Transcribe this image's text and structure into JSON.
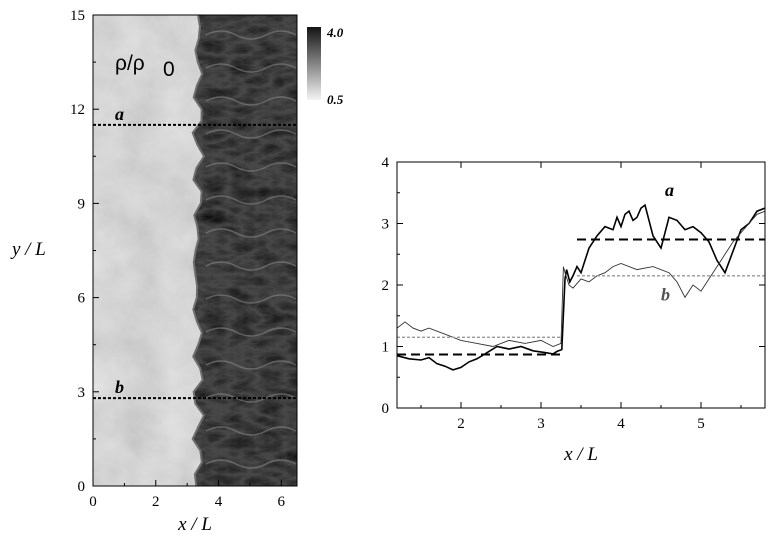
{
  "chart_data": [
    {
      "type": "heatmap",
      "field_label": "ρ/ρ",
      "field_label_sub": "0",
      "xlabel": "x / L",
      "ylabel": "y / L",
      "xlim": [
        0,
        6.5
      ],
      "ylim": [
        0,
        15
      ],
      "xticks": [
        "0",
        "2",
        "4",
        "6"
      ],
      "yticks": [
        "0",
        "3",
        "6",
        "9",
        "12",
        "15"
      ],
      "colorbar": {
        "min_label": "0.5",
        "max_label": "4.0",
        "min": 0.5,
        "max": 4.0
      },
      "cut_lines": [
        {
          "name": "a",
          "y": 11.5
        },
        {
          "name": "b",
          "y": 2.8
        }
      ],
      "colors": {
        "unshocked": "#e2e2e2",
        "shocked": "#474747",
        "front": "#6e6e6e"
      }
    },
    {
      "type": "line",
      "xlabel": "x / L",
      "ylabel": "",
      "xlim": [
        1.2,
        5.8
      ],
      "ylim": [
        0,
        4
      ],
      "xticks": [
        "2",
        "3",
        "4",
        "5"
      ],
      "yticks": [
        "0",
        "1",
        "2",
        "3",
        "4"
      ],
      "series": [
        {
          "name": "a",
          "color": "#000000",
          "x": [
            1.2,
            1.35,
            1.5,
            1.6,
            1.7,
            1.8,
            1.9,
            2.0,
            2.1,
            2.2,
            2.3,
            2.45,
            2.6,
            2.75,
            2.9,
            3.05,
            3.15,
            3.2,
            3.26,
            3.3,
            3.32,
            3.36,
            3.4,
            3.45,
            3.5,
            3.55,
            3.6,
            3.7,
            3.8,
            3.9,
            3.95,
            4.0,
            4.05,
            4.1,
            4.15,
            4.2,
            4.25,
            4.3,
            4.4,
            4.5,
            4.6,
            4.7,
            4.8,
            4.9,
            5.0,
            5.1,
            5.2,
            5.3,
            5.4,
            5.5,
            5.6,
            5.7,
            5.8
          ],
          "y": [
            0.85,
            0.8,
            0.78,
            0.82,
            0.72,
            0.68,
            0.62,
            0.66,
            0.75,
            0.8,
            0.88,
            1.0,
            0.96,
            1.0,
            0.93,
            0.9,
            0.88,
            0.92,
            0.95,
            2.1,
            2.25,
            2.05,
            2.15,
            2.3,
            2.2,
            2.4,
            2.6,
            2.8,
            2.95,
            2.9,
            3.1,
            2.95,
            3.15,
            3.2,
            3.05,
            3.1,
            3.25,
            3.3,
            2.8,
            2.6,
            3.1,
            3.05,
            2.9,
            2.95,
            2.85,
            2.7,
            2.4,
            2.2,
            2.55,
            2.9,
            3.0,
            3.2,
            3.25
          ]
        },
        {
          "name": "a-mean-left",
          "color": "#000000",
          "x": [
            1.2,
            3.25
          ],
          "y": [
            0.87,
            0.87
          ]
        },
        {
          "name": "a-mean-right",
          "color": "#000000",
          "x": [
            3.45,
            5.8
          ],
          "y": [
            2.74,
            2.74
          ]
        },
        {
          "name": "b",
          "color": "#333333",
          "x": [
            1.2,
            1.3,
            1.4,
            1.5,
            1.6,
            1.8,
            2.0,
            2.2,
            2.4,
            2.6,
            2.8,
            3.0,
            3.15,
            3.25,
            3.28,
            3.3,
            3.35,
            3.4,
            3.5,
            3.6,
            3.7,
            3.8,
            3.9,
            4.0,
            4.2,
            4.4,
            4.6,
            4.7,
            4.8,
            4.9,
            5.0,
            5.1,
            5.2,
            5.3,
            5.4,
            5.5,
            5.6,
            5.7,
            5.8
          ],
          "y": [
            1.3,
            1.4,
            1.3,
            1.25,
            1.3,
            1.2,
            1.1,
            1.05,
            1.0,
            1.1,
            1.05,
            1.1,
            1.0,
            1.05,
            2.3,
            2.2,
            2.0,
            1.95,
            2.1,
            2.05,
            2.15,
            2.2,
            2.3,
            2.35,
            2.25,
            2.3,
            2.2,
            2.05,
            1.8,
            2.0,
            1.9,
            2.1,
            2.3,
            2.5,
            2.7,
            2.85,
            3.0,
            3.15,
            3.2
          ]
        },
        {
          "name": "b-mean-left",
          "color": "#999999",
          "x": [
            1.2,
            3.25
          ],
          "y": [
            1.15,
            1.15
          ]
        },
        {
          "name": "b-mean-right",
          "color": "#999999",
          "x": [
            3.45,
            5.8
          ],
          "y": [
            2.15,
            2.15
          ]
        }
      ],
      "labels": [
        {
          "text": "a",
          "x": 4.55,
          "y": 3.45,
          "color": "#000000"
        },
        {
          "text": "b",
          "x": 4.5,
          "y": 1.75,
          "color": "#555555"
        }
      ]
    }
  ]
}
